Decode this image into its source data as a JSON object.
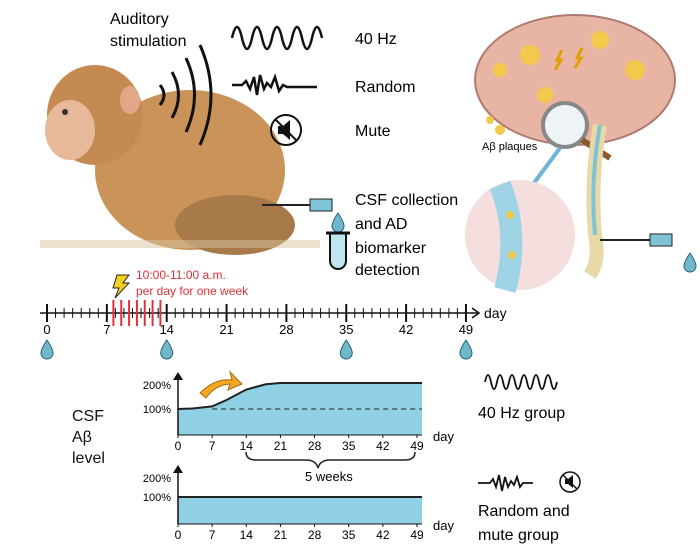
{
  "top": {
    "stim_label_line1": "Auditory",
    "stim_label_line2": "stimulation",
    "conditions": [
      "40 Hz",
      "Random",
      "Mute"
    ],
    "csf_line1": "CSF collection",
    "csf_line2": "and AD",
    "csf_line3": "biomarker",
    "csf_line4": "detection",
    "plaques_label": "Aβ plaques"
  },
  "timeline": {
    "unit": "day",
    "ticks": [
      "0",
      "7",
      "14",
      "21",
      "28",
      "35",
      "42",
      "49"
    ],
    "stim_note_line1": "10:00-11:00 a.m.",
    "stim_note_line2": "per day for one week",
    "stim_days": [
      8,
      13
    ],
    "sampling_days": [
      0,
      14,
      35,
      49
    ],
    "stim_color": "#e0303a"
  },
  "chart_data": [
    {
      "type": "area",
      "group": "40 Hz group",
      "ylabel": "CSF Aβ level",
      "xlabel": "day",
      "x_ticks": [
        0,
        7,
        14,
        21,
        28,
        35,
        42,
        49
      ],
      "y_ticks": [
        "100%",
        "200%"
      ],
      "series": [
        {
          "x": [
            0,
            3,
            7,
            10,
            14,
            18,
            21,
            49
          ],
          "y": [
            100,
            102,
            110,
            135,
            175,
            195,
            200,
            200
          ]
        }
      ],
      "reference_line": 100,
      "annotation": "5 weeks",
      "fill": "#8fd0e4"
    },
    {
      "type": "area",
      "group": "Random and mute group",
      "xlabel": "day",
      "x_ticks": [
        0,
        7,
        14,
        21,
        28,
        35,
        42,
        49
      ],
      "y_ticks": [
        "100%",
        "200%"
      ],
      "series": [
        {
          "x": [
            0,
            49
          ],
          "y": [
            100,
            100
          ]
        }
      ],
      "fill": "#8fd0e4"
    }
  ],
  "legend": {
    "group1": "40 Hz group",
    "group2_line1": "Random and",
    "group2_line2": "mute group"
  }
}
